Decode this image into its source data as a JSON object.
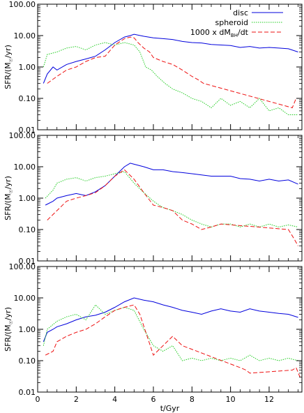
{
  "chart_data": {
    "type": "line",
    "panel_count": 3,
    "xlabel": "t/Gyr",
    "ylabel_parts": [
      "SFR/(M",
      "☉",
      "/yr)"
    ],
    "xlim": [
      0,
      13.7
    ],
    "ylim": [
      0.01,
      100
    ],
    "yscale": "log",
    "x_ticks": [
      0,
      2,
      4,
      6,
      8,
      10,
      12
    ],
    "x_tick_labels": [
      "0",
      "2",
      "4",
      "6",
      "8",
      "10",
      "12"
    ],
    "y_ticks": [
      0.01,
      0.1,
      1,
      10,
      100
    ],
    "y_tick_labels": [
      "0.01",
      "0.10",
      "1.00",
      "10.00",
      "100.00"
    ],
    "legend_position": "top-right",
    "legend": [
      {
        "key": "disc",
        "label": "disc"
      },
      {
        "key": "spheroid",
        "label": "spheroid"
      },
      {
        "key": "bh",
        "label_parts": [
          "1000 x dM",
          "BH",
          "/dt"
        ]
      }
    ],
    "style": {
      "disc": {
        "color": "#0000dd",
        "dash": ""
      },
      "spheroid": {
        "color": "#22cc22",
        "dash": "1.5,1.5"
      },
      "bh": {
        "color": "#ee1111",
        "dash": "6,3"
      }
    },
    "panels": [
      {
        "series": [
          {
            "key": "disc",
            "x": [
              0.3,
              0.5,
              0.8,
              1.0,
              1.5,
              2.0,
              2.5,
              3.0,
              3.5,
              4.0,
              4.5,
              4.8,
              5.0,
              5.5,
              6.0,
              6.5,
              7.0,
              7.5,
              8.0,
              8.5,
              9.0,
              9.5,
              10.0,
              10.5,
              11.0,
              11.5,
              12.0,
              12.5,
              13.0,
              13.5
            ],
            "y": [
              0.3,
              0.6,
              1.0,
              0.8,
              1.2,
              1.5,
              1.8,
              2.2,
              3.5,
              6.0,
              9.0,
              10.0,
              11.0,
              9.5,
              8.5,
              8.0,
              7.5,
              6.5,
              6.0,
              5.8,
              5.2,
              5.0,
              4.8,
              4.2,
              4.5,
              4.0,
              4.2,
              4.0,
              3.8,
              3.0
            ]
          },
          {
            "key": "spheroid",
            "x": [
              0.3,
              0.5,
              1.0,
              1.5,
              2.0,
              2.5,
              3.0,
              3.5,
              4.0,
              4.5,
              5.0,
              5.3,
              5.6,
              5.9,
              6.2,
              6.6,
              7.0,
              7.5,
              8.0,
              8.5,
              9.0,
              9.5,
              10.0,
              10.5,
              11.0,
              11.5,
              12.0,
              12.5,
              13.0,
              13.5
            ],
            "y": [
              1.0,
              2.5,
              3.0,
              4.0,
              4.5,
              3.5,
              5.0,
              6.0,
              5.0,
              6.0,
              5.0,
              3.0,
              1.0,
              0.8,
              0.5,
              0.3,
              0.2,
              0.15,
              0.1,
              0.08,
              0.05,
              0.1,
              0.06,
              0.08,
              0.05,
              0.1,
              0.04,
              0.05,
              0.03,
              0.03
            ]
          },
          {
            "key": "bh",
            "x": [
              0.5,
              1.0,
              1.5,
              2.0,
              2.5,
              3.0,
              3.5,
              4.0,
              4.5,
              4.8,
              5.0,
              5.2,
              5.5,
              5.8,
              6.0,
              6.5,
              7.0,
              7.5,
              8.0,
              8.3,
              8.6,
              13.2,
              13.4,
              13.6
            ],
            "y": [
              0.3,
              0.5,
              0.8,
              1.0,
              1.5,
              2.0,
              2.2,
              5.0,
              8.0,
              9.0,
              8.5,
              6.0,
              4.0,
              3.0,
              2.0,
              1.5,
              1.2,
              0.8,
              0.5,
              0.4,
              0.3,
              0.05,
              0.1,
              0.1
            ]
          }
        ]
      },
      {
        "series": [
          {
            "key": "disc",
            "x": [
              0.4,
              0.8,
              1.0,
              1.5,
              2.0,
              2.5,
              3.0,
              3.5,
              4.0,
              4.5,
              4.8,
              5.0,
              5.5,
              6.0,
              6.5,
              7.0,
              7.5,
              8.0,
              8.5,
              9.0,
              9.5,
              10.0,
              10.5,
              11.0,
              11.5,
              12.0,
              12.5,
              13.0,
              13.5
            ],
            "y": [
              0.6,
              0.8,
              1.0,
              1.2,
              1.4,
              1.2,
              1.6,
              2.5,
              5.0,
              10.0,
              13.0,
              12.0,
              10.0,
              8.0,
              8.0,
              7.0,
              6.5,
              6.0,
              5.5,
              5.0,
              5.0,
              5.0,
              4.2,
              4.0,
              3.5,
              4.0,
              3.5,
              3.8,
              2.8
            ]
          },
          {
            "key": "spheroid",
            "x": [
              0.4,
              0.8,
              1.0,
              1.5,
              2.0,
              2.5,
              3.0,
              3.5,
              4.0,
              4.5,
              5.0,
              5.5,
              6.0,
              6.5,
              7.0,
              7.5,
              8.0,
              8.5,
              9.0,
              9.5,
              10.0,
              10.5,
              11.0,
              11.5,
              12.0,
              12.5,
              13.0,
              13.5
            ],
            "y": [
              1.0,
              1.8,
              3.0,
              4.0,
              4.5,
              3.5,
              4.5,
              5.0,
              6.0,
              7.0,
              3.0,
              1.5,
              0.8,
              0.5,
              0.4,
              0.3,
              0.2,
              0.15,
              0.12,
              0.15,
              0.15,
              0.12,
              0.15,
              0.12,
              0.15,
              0.12,
              0.14,
              0.12
            ]
          },
          {
            "key": "bh",
            "x": [
              0.5,
              1.0,
              1.5,
              2.0,
              2.5,
              3.0,
              3.5,
              4.0,
              4.5,
              5.0,
              5.5,
              6.0,
              6.5,
              7.0,
              7.5,
              8.0,
              8.5,
              9.0,
              9.5,
              13.0,
              13.3,
              13.5
            ],
            "y": [
              0.2,
              0.4,
              0.8,
              1.0,
              1.2,
              1.5,
              2.5,
              5.0,
              8.0,
              4.0,
              1.5,
              0.6,
              0.5,
              0.4,
              0.2,
              0.15,
              0.1,
              0.12,
              0.15,
              0.1,
              0.05,
              0.03
            ]
          }
        ]
      },
      {
        "series": [
          {
            "key": "disc",
            "x": [
              0.3,
              0.5,
              0.8,
              1.0,
              1.5,
              2.0,
              2.5,
              3.0,
              3.5,
              4.0,
              4.5,
              5.0,
              5.5,
              6.0,
              6.5,
              7.0,
              7.5,
              8.0,
              8.5,
              9.0,
              9.5,
              10.0,
              10.5,
              11.0,
              11.5,
              12.0,
              12.5,
              13.0,
              13.5
            ],
            "y": [
              0.4,
              0.8,
              1.0,
              1.2,
              1.5,
              2.0,
              2.5,
              2.8,
              3.5,
              5.0,
              7.5,
              10.0,
              8.5,
              7.5,
              6.0,
              5.0,
              4.0,
              3.5,
              3.0,
              3.8,
              4.5,
              3.8,
              3.5,
              4.5,
              3.8,
              3.5,
              3.2,
              3.0,
              2.4
            ]
          },
          {
            "key": "spheroid",
            "x": [
              0.3,
              0.5,
              1.0,
              1.5,
              2.0,
              2.5,
              3.0,
              3.5,
              4.0,
              4.5,
              5.0,
              5.5,
              6.0,
              6.5,
              7.0,
              7.5,
              8.0,
              8.5,
              9.0,
              9.5,
              10.0,
              10.5,
              11.0,
              11.5,
              12.0,
              12.5,
              13.0,
              13.5
            ],
            "y": [
              0.3,
              1.0,
              1.8,
              2.5,
              3.0,
              2.0,
              6.0,
              3.0,
              4.0,
              5.0,
              4.0,
              1.0,
              0.3,
              0.2,
              0.3,
              0.1,
              0.12,
              0.1,
              0.12,
              0.1,
              0.12,
              0.1,
              0.15,
              0.1,
              0.12,
              0.1,
              0.12,
              0.1
            ]
          },
          {
            "key": "bh",
            "x": [
              0.4,
              0.8,
              1.0,
              1.5,
              2.0,
              2.5,
              3.0,
              3.5,
              4.0,
              4.5,
              5.0,
              5.3,
              6.0,
              6.5,
              7.0,
              7.5,
              10.5,
              10.8,
              11.0,
              13.2,
              13.4,
              13.6
            ],
            "y": [
              0.15,
              0.2,
              0.4,
              0.6,
              0.8,
              1.0,
              1.5,
              2.5,
              4.0,
              5.0,
              6.0,
              3.0,
              0.15,
              0.3,
              0.6,
              0.3,
              0.06,
              0.05,
              0.04,
              0.05,
              0.06,
              0.03
            ]
          }
        ]
      }
    ]
  }
}
